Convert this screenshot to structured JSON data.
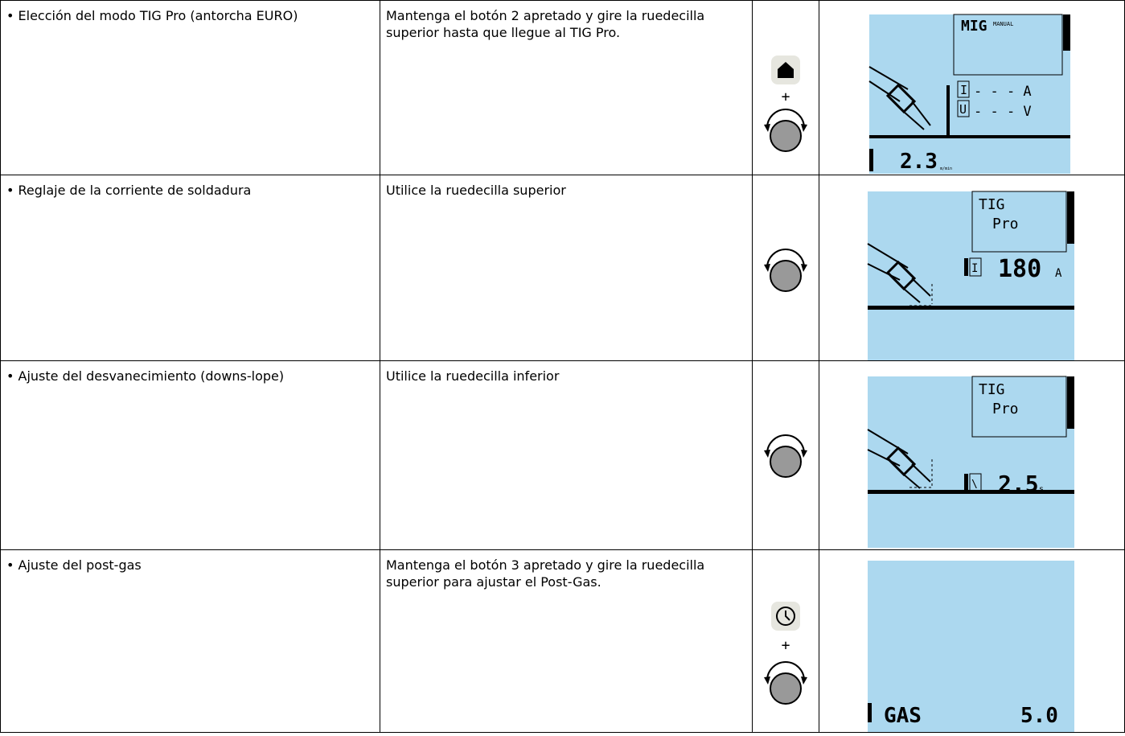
{
  "table": {
    "rows": [
      {
        "description": "• Elección del modo TIG Pro (antorcha EURO)",
        "instruction": "Mantenga el botón 2 apretado y gire la ruedecilla superior hasta que llegue al TIG Pro.",
        "plus": "+",
        "display": {
          "mode": "MIG",
          "mode_sub": "MANUAL",
          "current_label": "I",
          "current_value": "- - - A",
          "voltage_label": "U",
          "voltage_value": "- - - V",
          "value": "2.3",
          "unit": "m/min"
        }
      },
      {
        "description": "• Reglaje de la corriente de soldadura",
        "instruction": "Utilice la ruedecilla superior",
        "display": {
          "mode": "TIG",
          "mode_sub": "Pro",
          "label": "I",
          "value": "180",
          "unit": "A"
        }
      },
      {
        "description": "• Ajuste del desvanecimiento (downs-lope)",
        "instruction": "Utilice la ruedecilla inferior",
        "display": {
          "mode": "TIG",
          "mode_sub": "Pro",
          "label": "\\",
          "value": "2.5",
          "unit": "s"
        }
      },
      {
        "description": "• Ajuste del post-gas",
        "instruction": "Mantenga el botón 3 apretado y gire la ruedecilla superior para ajustar el Post-Gas.",
        "plus": "+",
        "display": {
          "label": "GAS",
          "value": "5.0"
        }
      }
    ]
  }
}
